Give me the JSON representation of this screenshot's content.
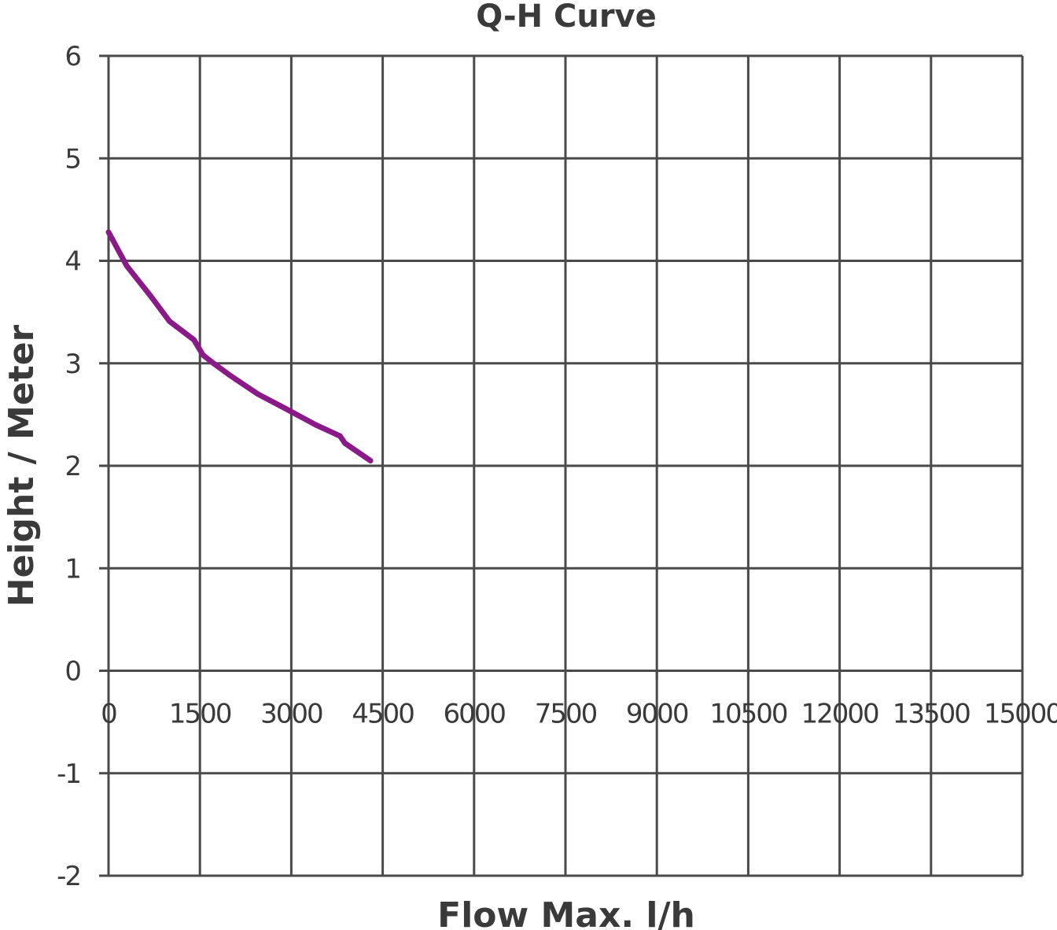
{
  "chart_data": {
    "type": "line",
    "title": "Q-H Curve",
    "xlabel": "Flow Max. l/h",
    "ylabel": "Height / Meter",
    "xlim": [
      0,
      15000
    ],
    "ylim": [
      -2,
      6
    ],
    "x_ticks": [
      0,
      1500,
      3000,
      4500,
      6000,
      7500,
      9000,
      10500,
      12000,
      13500,
      15000
    ],
    "y_ticks": [
      -2,
      -1,
      0,
      1,
      2,
      3,
      4,
      5,
      6
    ],
    "grid": true,
    "legend": "none",
    "series": [
      {
        "color": "#8b1a89",
        "x": [
          0,
          300,
          700,
          1000,
          1400,
          1550,
          1700,
          2000,
          2450,
          2900,
          3400,
          3800,
          3880,
          4300
        ],
        "y": [
          4.28,
          3.95,
          3.65,
          3.41,
          3.23,
          3.08,
          3.01,
          2.88,
          2.7,
          2.56,
          2.4,
          2.29,
          2.22,
          2.05
        ]
      }
    ]
  }
}
